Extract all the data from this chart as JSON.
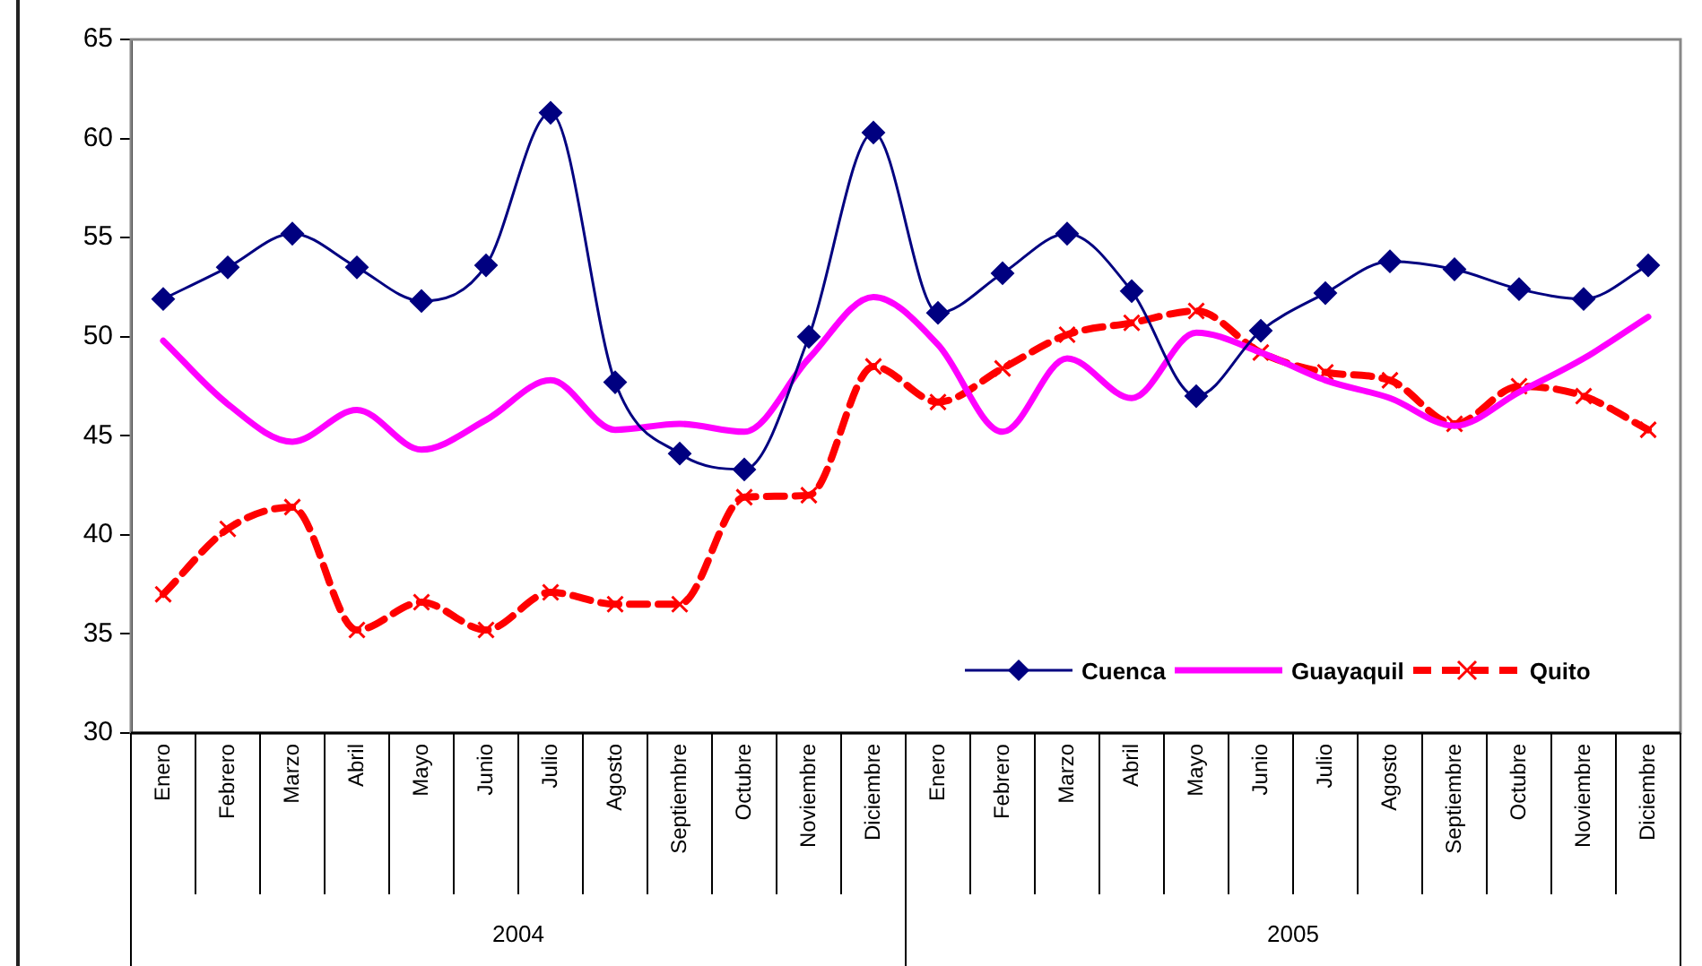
{
  "chart_data": {
    "type": "line",
    "categories": [
      "Enero",
      "Febrero",
      "Marzo",
      "Abril",
      "Mayo",
      "Junio",
      "Julio",
      "Agosto",
      "Septiembre",
      "Octubre",
      "Noviembre",
      "Diciembre",
      "Enero",
      "Febrero",
      "Marzo",
      "Abril",
      "Mayo",
      "Junio",
      "Julio",
      "Agosto",
      "Septiembre",
      "Octubre",
      "Noviembre",
      "Diciembre"
    ],
    "series": [
      {
        "name": "Cuenca",
        "color": "#000080",
        "marker": "diamond",
        "line_style": "solid",
        "values": [
          51.9,
          53.5,
          55.2,
          53.5,
          51.8,
          53.6,
          61.3,
          47.7,
          44.1,
          43.3,
          50.0,
          60.3,
          51.2,
          53.2,
          55.2,
          52.3,
          47.0,
          50.3,
          52.2,
          53.8,
          53.4,
          52.4,
          51.9,
          53.6
        ]
      },
      {
        "name": "Guayaquil",
        "color": "#ff00ff",
        "marker": "none",
        "line_style": "solid",
        "values": [
          49.8,
          46.6,
          44.7,
          46.3,
          44.3,
          45.8,
          47.8,
          45.3,
          45.6,
          45.2,
          48.9,
          52.0,
          49.6,
          45.2,
          48.9,
          46.9,
          50.2,
          49.2,
          47.8,
          46.9,
          45.5,
          47.2,
          48.9,
          51.0
        ]
      },
      {
        "name": "Quito",
        "color": "#ff0000",
        "marker": "cross",
        "line_style": "dashed",
        "values": [
          37.0,
          40.3,
          41.4,
          35.2,
          36.6,
          35.2,
          37.1,
          36.5,
          36.5,
          41.9,
          42.0,
          48.5,
          46.7,
          48.4,
          50.1,
          50.7,
          51.3,
          49.2,
          48.2,
          47.8,
          45.6,
          47.5,
          47.0,
          45.3
        ]
      }
    ],
    "ylim": [
      30,
      65
    ],
    "yticks": [
      30,
      35,
      40,
      45,
      50,
      55,
      60,
      65
    ],
    "grid": false,
    "legend": "bottom right",
    "annotations": [
      "2004",
      "2005"
    ]
  }
}
